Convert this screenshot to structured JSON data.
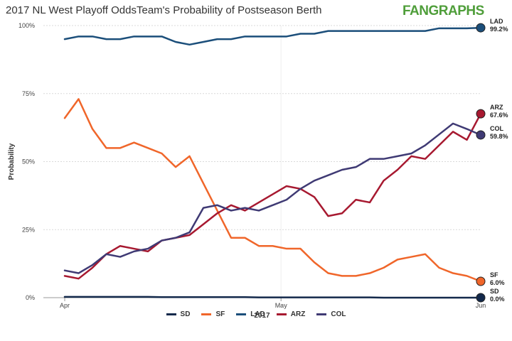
{
  "title": "2017 NL West Playoff OddsTeam's Probability of Postseason Berth",
  "brand": "FANGRAPHS",
  "chart_data": {
    "type": "line",
    "title": "2017 NL West Playoff OddsTeam's Probability of Postseason Berth",
    "xlabel": "2017",
    "ylabel": "Probability",
    "x_ticks": [
      "Apr",
      "May",
      "Jun"
    ],
    "y_ticks": [
      "0%",
      "25%",
      "50%",
      "75%",
      "100%"
    ],
    "ylim": [
      0,
      100
    ],
    "grid": true,
    "legend_position": "bottom",
    "x_dates": [
      "2017-04-01",
      "2017-04-03",
      "2017-04-05",
      "2017-04-07",
      "2017-04-09",
      "2017-04-11",
      "2017-04-13",
      "2017-04-15",
      "2017-04-17",
      "2017-04-19",
      "2017-04-21",
      "2017-04-23",
      "2017-04-25",
      "2017-04-27",
      "2017-04-29",
      "2017-05-01",
      "2017-05-03",
      "2017-05-05",
      "2017-05-07",
      "2017-05-09",
      "2017-05-11",
      "2017-05-13",
      "2017-05-15",
      "2017-05-17",
      "2017-05-19",
      "2017-05-21",
      "2017-05-23",
      "2017-05-25",
      "2017-05-27",
      "2017-05-29",
      "2017-05-31"
    ],
    "series": [
      {
        "name": "SD",
        "color": "#13294b",
        "values": [
          0.3,
          0.3,
          0.3,
          0.3,
          0.3,
          0.3,
          0.3,
          0.2,
          0.2,
          0.2,
          0.2,
          0.2,
          0.2,
          0.2,
          0.1,
          0.1,
          0.1,
          0.1,
          0.1,
          0.1,
          0.1,
          0.1,
          0.1,
          0.0,
          0.0,
          0.0,
          0.0,
          0.0,
          0.0,
          0.0,
          0.0
        ],
        "end_label": "0.0%"
      },
      {
        "name": "SF",
        "color": "#f0662a",
        "values": [
          66,
          73,
          62,
          55,
          55,
          57,
          55,
          53,
          48,
          52,
          42,
          32,
          22,
          22,
          19,
          19,
          18,
          18,
          13,
          9,
          8,
          8,
          9,
          11,
          14,
          15,
          16,
          11,
          9,
          8,
          6
        ],
        "end_label": "6.0%"
      },
      {
        "name": "LAD",
        "color": "#1b4e7a",
        "values": [
          95,
          96,
          96,
          95,
          95,
          96,
          96,
          96,
          94,
          93,
          94,
          95,
          95,
          96,
          96,
          96,
          96,
          97,
          97,
          98,
          98,
          98,
          98,
          98,
          98,
          98,
          98,
          99,
          99,
          99,
          99.2
        ],
        "end_label": "99.2%"
      },
      {
        "name": "ARZ",
        "color": "#a71930",
        "values": [
          8,
          7,
          11,
          16,
          19,
          18,
          17,
          21,
          22,
          23,
          27,
          31,
          34,
          32,
          35,
          38,
          41,
          40,
          37,
          30,
          31,
          36,
          35,
          43,
          47,
          52,
          51,
          56,
          61,
          58,
          67.6
        ],
        "end_label": "67.6%"
      },
      {
        "name": "COL",
        "color": "#3f3a74",
        "values": [
          10,
          9,
          12,
          16,
          15,
          17,
          18,
          21,
          22,
          24,
          33,
          34,
          32,
          33,
          32,
          34,
          36,
          40,
          43,
          45,
          47,
          48,
          51,
          51,
          52,
          53,
          56,
          60,
          64,
          62,
          59.8
        ],
        "end_label": "59.8%"
      }
    ]
  }
}
